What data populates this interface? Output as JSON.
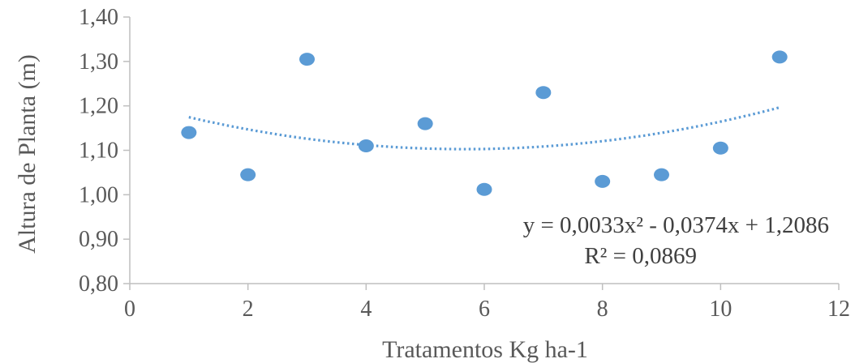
{
  "chart_data": {
    "type": "scatter",
    "xlabel": "Tratamentos Kg ha-1",
    "ylabel": "Altura de Planta (m)",
    "xlim": [
      0,
      12
    ],
    "ylim": [
      0.8,
      1.4
    ],
    "x_ticks": [
      0,
      2,
      4,
      6,
      8,
      10,
      12
    ],
    "x_tick_labels": [
      "0",
      "2",
      "4",
      "6",
      "8",
      "10",
      "12"
    ],
    "y_ticks": [
      0.8,
      0.9,
      1.0,
      1.1,
      1.2,
      1.3,
      1.4
    ],
    "y_tick_labels": [
      "0,80",
      "0,90",
      "1,00",
      "1,10",
      "1,20",
      "1,30",
      "1,40"
    ],
    "grid": false,
    "marker_color": "#5b9bd5",
    "trendline_color": "#5b9bd5",
    "points": [
      {
        "x": 1,
        "y": 1.14
      },
      {
        "x": 2,
        "y": 1.045
      },
      {
        "x": 3,
        "y": 1.305
      },
      {
        "x": 4,
        "y": 1.11
      },
      {
        "x": 5,
        "y": 1.16
      },
      {
        "x": 6,
        "y": 1.012
      },
      {
        "x": 7,
        "y": 1.23
      },
      {
        "x": 8,
        "y": 1.03
      },
      {
        "x": 9,
        "y": 1.045
      },
      {
        "x": 10,
        "y": 1.105
      },
      {
        "x": 11,
        "y": 1.31
      }
    ],
    "trendline": {
      "type": "polynomial",
      "coefficients": {
        "a": 0.0033,
        "b": -0.0374,
        "c": 1.2086
      },
      "x_range": [
        1,
        11
      ],
      "equation_text": "y = 0,0033x²  - 0,0374x + 1,2086",
      "r2_text": "R² = 0,0869"
    }
  }
}
